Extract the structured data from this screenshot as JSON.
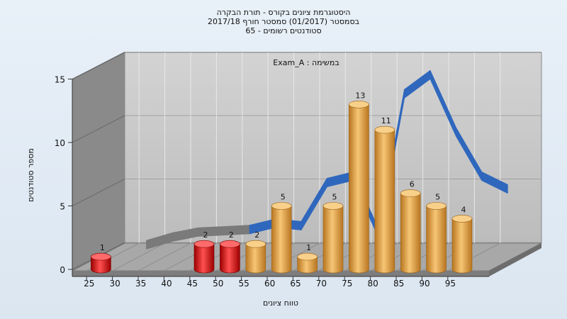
{
  "chart_data": {
    "type": "bar",
    "title_lines": [
      "היסטוגרמת ציונים בקורס - תורת הבקרה",
      "בסמסטר  (01/2017)  סמסטר חורף  2017/18",
      "סטודנטים רשומים - 65"
    ],
    "annotation": "Exam_A : במשימה",
    "xlabel": "טווח ציונים",
    "ylabel": "מספר סטודנטים",
    "ylim": [
      0,
      15
    ],
    "y_ticks": [
      0,
      5,
      10,
      15
    ],
    "x_ticks": [
      25,
      30,
      35,
      40,
      45,
      50,
      55,
      60,
      65,
      70,
      75,
      80,
      85,
      90,
      95
    ],
    "bars": [
      {
        "x": 27.5,
        "value": 1,
        "status": "fail"
      },
      {
        "x": 47.5,
        "value": 2,
        "status": "fail"
      },
      {
        "x": 52.5,
        "value": 2,
        "status": "fail"
      },
      {
        "x": 57.5,
        "value": 2,
        "status": "pass"
      },
      {
        "x": 62.5,
        "value": 5,
        "status": "pass"
      },
      {
        "x": 67.5,
        "value": 1,
        "status": "pass"
      },
      {
        "x": 72.5,
        "value": 5,
        "status": "pass"
      },
      {
        "x": 77.5,
        "value": 13,
        "status": "pass"
      },
      {
        "x": 82.5,
        "value": 11,
        "status": "pass"
      },
      {
        "x": 87.5,
        "value": 6,
        "status": "pass"
      },
      {
        "x": 92.5,
        "value": 5,
        "status": "pass"
      },
      {
        "x": 97.5,
        "value": 4,
        "status": "pass"
      }
    ],
    "ribbon": {
      "x": [
        30,
        35,
        40,
        45,
        50,
        55,
        60,
        65,
        70,
        75,
        80,
        85,
        90,
        95,
        100
      ],
      "y": [
        0.6,
        1.2,
        1.6,
        1.7,
        1.8,
        2.3,
        2.1,
        5.5,
        6.0,
        1.5,
        12.5,
        14.0,
        9.5,
        6.0,
        5.0
      ]
    },
    "grid": true,
    "colors": {
      "fail": "#dd1111",
      "pass": "#e9a445",
      "ribbon": "#2f67bd",
      "ribbon_faded": "#7a7a7a",
      "wall": "#c5c5c5",
      "side_wall": "#8a8a8a"
    }
  }
}
